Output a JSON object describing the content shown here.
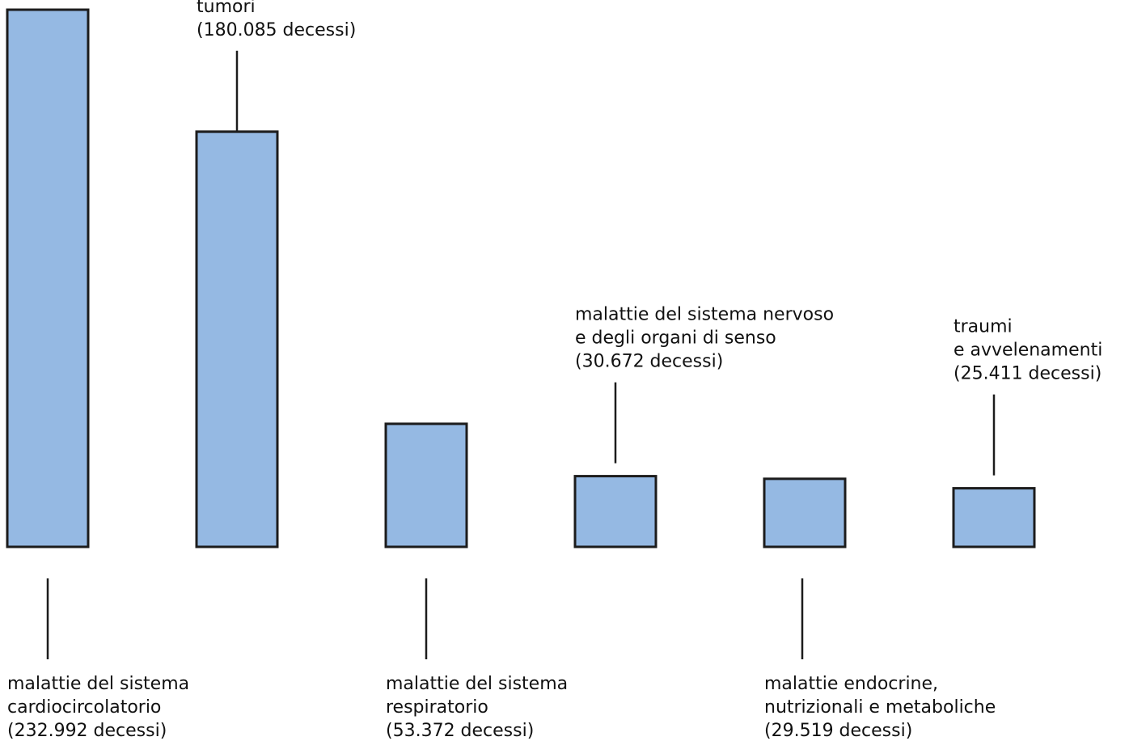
{
  "chart_data": {
    "type": "bar",
    "categories": [
      "malattie del sistema cardiocircolatorio",
      "tumori",
      "malattie del sistema respiratorio",
      "malattie del sistema nervoso e degli organi di senso",
      "malattie endocrine, nutrizionali e metaboliche",
      "traumi e avvelenamenti"
    ],
    "values": [
      232992,
      180085,
      53372,
      30672,
      29519,
      25411
    ],
    "ylim": [
      0,
      232992
    ],
    "grid": false,
    "colors": {
      "bar": "#95b9e3",
      "outline": "#1c1c1c"
    },
    "labels": [
      {
        "position": "below",
        "lines": [
          "malattie del sistema",
          "cardiocircolatorio",
          "(232.992 decessi)"
        ]
      },
      {
        "position": "above",
        "lines": [
          "tumori",
          "(180.085 decessi)"
        ]
      },
      {
        "position": "below",
        "lines": [
          "malattie del sistema",
          "respiratorio",
          "(53.372 decessi)"
        ]
      },
      {
        "position": "above",
        "lines": [
          "malattie del sistema nervoso",
          "e degli organi di senso",
          "(30.672 decessi)"
        ]
      },
      {
        "position": "below",
        "lines": [
          "malattie endocrine,",
          "nutrizionali e metaboliche",
          "(29.519 decessi)"
        ]
      },
      {
        "position": "above",
        "lines": [
          "traumi",
          "e avvelenamenti",
          "(25.411 decessi)"
        ]
      }
    ]
  }
}
